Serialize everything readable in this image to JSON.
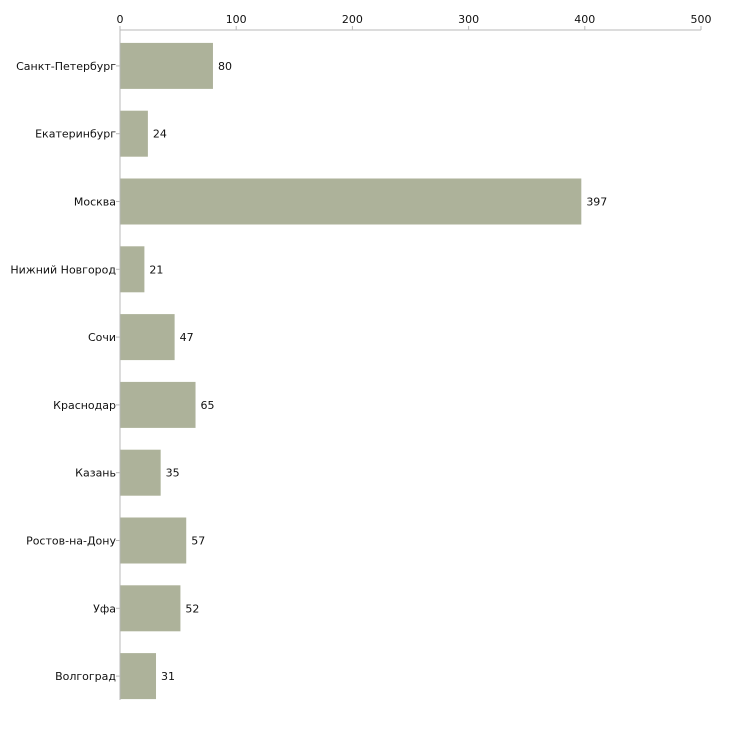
{
  "chart_data": {
    "type": "bar",
    "orientation": "horizontal",
    "title": "",
    "xlabel": "",
    "ylabel": "",
    "categories": [
      "Санкт-Петербург",
      "Екатеринбург",
      "Москва",
      "Нижний Новгород",
      "Сочи",
      "Краснодар",
      "Казань",
      "Ростов-на-Дону",
      "Уфа",
      "Волгоград"
    ],
    "values": [
      80,
      24,
      397,
      21,
      47,
      65,
      35,
      57,
      52,
      31
    ],
    "xlim": [
      0,
      500
    ],
    "ticks": [
      0,
      100,
      200,
      300,
      400,
      500
    ],
    "tick_labels": [
      "0",
      "100",
      "200",
      "300",
      "400",
      "500"
    ],
    "axis_position": "top",
    "grid": false,
    "legend": "none",
    "data_labels": true,
    "colors": {
      "bar": "#adb29a",
      "axis": "#b8b8b8",
      "text": "#111111"
    }
  }
}
